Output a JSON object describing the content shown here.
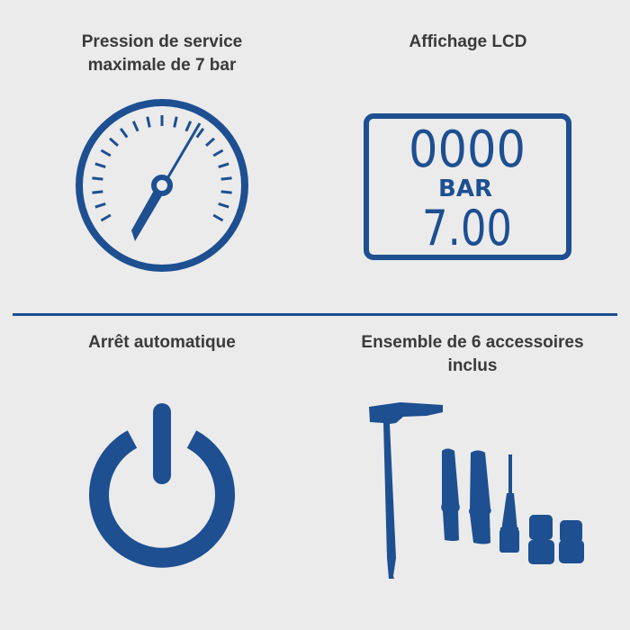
{
  "features": [
    {
      "title": "Pression de service maximale de 7 bar",
      "icon": "pressure-gauge-icon"
    },
    {
      "title": "Affichage LCD",
      "icon": "lcd-display-icon",
      "display": {
        "top": "0000",
        "unit": "BAR",
        "value": "7.00"
      }
    },
    {
      "title": "Arrêt automatique",
      "icon": "power-icon"
    },
    {
      "title": "Ensemble de 6 accessoires inclus",
      "icon": "accessories-icon"
    }
  ],
  "colors": {
    "accent": "#1d4f91",
    "background": "#ebebeb",
    "text": "#3a3a3a"
  }
}
